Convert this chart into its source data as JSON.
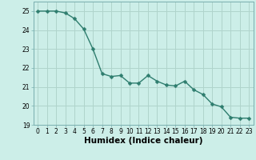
{
  "x": [
    0,
    1,
    2,
    3,
    4,
    5,
    6,
    7,
    8,
    9,
    10,
    11,
    12,
    13,
    14,
    15,
    16,
    17,
    18,
    19,
    20,
    21,
    22,
    23
  ],
  "y": [
    25.0,
    25.0,
    25.0,
    24.9,
    24.6,
    24.05,
    23.0,
    21.7,
    21.55,
    21.6,
    21.2,
    21.2,
    21.6,
    21.3,
    21.1,
    21.05,
    21.3,
    20.85,
    20.6,
    20.1,
    19.95,
    19.4,
    19.35,
    19.35
  ],
  "line_color": "#2e7d6e",
  "marker": "D",
  "marker_size": 2.5,
  "bg_color": "#cceee8",
  "grid_color_major": "#b0d4cc",
  "grid_color_minor": "#c8e8e0",
  "xlabel": "Humidex (Indice chaleur)",
  "ylim": [
    19,
    25.5
  ],
  "xlim": [
    -0.5,
    23.5
  ],
  "yticks": [
    19,
    20,
    21,
    22,
    23,
    24,
    25
  ],
  "xticks": [
    0,
    1,
    2,
    3,
    4,
    5,
    6,
    7,
    8,
    9,
    10,
    11,
    12,
    13,
    14,
    15,
    16,
    17,
    18,
    19,
    20,
    21,
    22,
    23
  ],
  "tick_fontsize": 5.5,
  "xlabel_fontsize": 7.5,
  "line_width": 1.0
}
